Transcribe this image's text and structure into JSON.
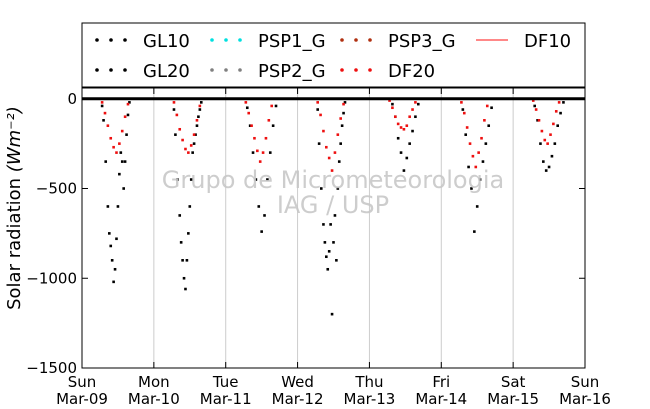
{
  "chart_data": {
    "type": "scatter",
    "ylabel": "Solar radiation",
    "ylabel_unit": "(Wm⁻²)",
    "ylim": [
      -1500,
      60
    ],
    "yticks": [
      0,
      -500,
      -1000,
      -1500
    ],
    "ytick_labels": [
      "0",
      "−500",
      "−1000",
      "−1500"
    ],
    "xlim": [
      0,
      7
    ],
    "xticks": [
      0,
      1,
      2,
      3,
      4,
      5,
      6,
      7
    ],
    "xtick_labels": [
      [
        "Sun",
        "Mar-09"
      ],
      [
        "Mon",
        "Mar-10"
      ],
      [
        "Tue",
        "Mar-11"
      ],
      [
        "Wed",
        "Mar-12"
      ],
      [
        "Thu",
        "Mar-13"
      ],
      [
        "Fri",
        "Mar-14"
      ],
      [
        "Sat",
        "Mar-15"
      ],
      [
        "Sun",
        "Mar-16"
      ]
    ],
    "grid": "vertical",
    "legend_position": "top",
    "legend": [
      {
        "name": "GL10",
        "marker": "dots",
        "color": "#000000"
      },
      {
        "name": "PSP1_G",
        "marker": "dots",
        "color": "#00e0e0"
      },
      {
        "name": "PSP3_G",
        "marker": "dots",
        "color": "#b03010"
      },
      {
        "name": "DF10",
        "marker": "line",
        "color": "#ff6060"
      },
      {
        "name": "GL20",
        "marker": "dots",
        "color": "#000000"
      },
      {
        "name": "PSP2_G",
        "marker": "dots",
        "color": "#808080"
      },
      {
        "name": "DF20",
        "marker": "dots",
        "color": "#ee1010"
      }
    ],
    "watermark": [
      "Grupo de Micrometeorologia",
      "IAG / USP"
    ],
    "series": [
      {
        "name": "GL10",
        "x": [
          0.28,
          0.3,
          0.33,
          0.36,
          0.38,
          0.4,
          0.42,
          0.44,
          0.46,
          0.48,
          0.5,
          0.52,
          0.54,
          0.56,
          0.58,
          0.6,
          0.62,
          0.64,
          0.66
        ],
        "y": [
          -40,
          -120,
          -350,
          -600,
          -750,
          -820,
          -900,
          -1020,
          -950,
          -780,
          -600,
          -420,
          -300,
          -350,
          -500,
          -350,
          -200,
          -90,
          -20
        ]
      },
      {
        "name": "GL20",
        "x": [
          1.28,
          1.3,
          1.33,
          1.36,
          1.38,
          1.4,
          1.42,
          1.44,
          1.46,
          1.48,
          1.5,
          1.52,
          1.54,
          1.56,
          1.58,
          1.6,
          1.62,
          1.64,
          1.66
        ],
        "y": [
          -60,
          -200,
          -450,
          -650,
          -800,
          -900,
          -1000,
          -1060,
          -900,
          -750,
          -600,
          -450,
          -300,
          -250,
          -200,
          -150,
          -100,
          -60,
          -20
        ]
      },
      {
        "name": "GL10",
        "x": [
          2.3,
          2.34,
          2.38,
          2.42,
          2.46,
          2.5,
          2.54,
          2.58,
          2.62,
          2.66,
          2.7
        ],
        "y": [
          -50,
          -150,
          -300,
          -450,
          -600,
          -740,
          -650,
          -450,
          -300,
          -150,
          -40
        ]
      },
      {
        "name": "GL20",
        "x": [
          3.28,
          3.3,
          3.33,
          3.36,
          3.38,
          3.4,
          3.42,
          3.44,
          3.46,
          3.48,
          3.5,
          3.52,
          3.54,
          3.56,
          3.58,
          3.6,
          3.62,
          3.64,
          3.66
        ],
        "y": [
          -60,
          -250,
          -500,
          -700,
          -800,
          -880,
          -950,
          -850,
          -700,
          -1200,
          -800,
          -650,
          -900,
          -500,
          -350,
          -250,
          -150,
          -80,
          -20
        ]
      },
      {
        "name": "GL10",
        "x": [
          4.32,
          4.36,
          4.4,
          4.44,
          4.48,
          4.52,
          4.56,
          4.6,
          4.64,
          4.68
        ],
        "y": [
          -30,
          -100,
          -220,
          -300,
          -400,
          -330,
          -250,
          -180,
          -100,
          -30
        ]
      },
      {
        "name": "GL20",
        "x": [
          5.3,
          5.34,
          5.38,
          5.42,
          5.46,
          5.5,
          5.54,
          5.58,
          5.62,
          5.66,
          5.7
        ],
        "y": [
          -60,
          -200,
          -380,
          -500,
          -740,
          -600,
          -450,
          -350,
          -250,
          -150,
          -50
        ]
      },
      {
        "name": "GL10",
        "x": [
          6.3,
          6.34,
          6.38,
          6.42,
          6.46,
          6.5,
          6.54,
          6.58,
          6.62,
          6.66,
          6.7
        ],
        "y": [
          -40,
          -120,
          -250,
          -350,
          -400,
          -380,
          -320,
          -250,
          -150,
          -80,
          -20
        ]
      },
      {
        "name": "DF20",
        "x": [
          0.28,
          0.32,
          0.36,
          0.4,
          0.44,
          0.48,
          0.52,
          0.56,
          0.6,
          0.64,
          1.28,
          1.32,
          1.36,
          1.4,
          1.44,
          1.48,
          1.52,
          1.56,
          1.6,
          1.64,
          2.28,
          2.32,
          2.36,
          2.4,
          2.44,
          2.48,
          2.52,
          2.56,
          2.6,
          2.64,
          3.28,
          3.32,
          3.36,
          3.4,
          3.44,
          3.48,
          3.52,
          3.56,
          3.6,
          3.64,
          4.28,
          4.32,
          4.36,
          4.4,
          4.44,
          4.48,
          4.52,
          4.56,
          4.6,
          4.64,
          5.28,
          5.32,
          5.36,
          5.4,
          5.44,
          5.48,
          5.52,
          5.56,
          5.6,
          5.64,
          6.28,
          6.32,
          6.36,
          6.4,
          6.44,
          6.48,
          6.52,
          6.56,
          6.6,
          6.64
        ],
        "y": [
          -20,
          -80,
          -150,
          -220,
          -270,
          -300,
          -250,
          -180,
          -100,
          -30,
          -20,
          -90,
          -170,
          -230,
          -280,
          -300,
          -260,
          -200,
          -120,
          -40,
          -20,
          -80,
          -150,
          -220,
          -290,
          -350,
          -300,
          -220,
          -120,
          -40,
          -20,
          -90,
          -180,
          -270,
          -330,
          -400,
          -300,
          -200,
          -110,
          -30,
          -10,
          -50,
          -100,
          -140,
          -160,
          -170,
          -150,
          -100,
          -60,
          -20,
          -20,
          -80,
          -160,
          -250,
          -320,
          -380,
          -300,
          -220,
          -120,
          -40,
          -10,
          -60,
          -120,
          -180,
          -230,
          -250,
          -200,
          -140,
          -70,
          -20
        ]
      }
    ]
  }
}
